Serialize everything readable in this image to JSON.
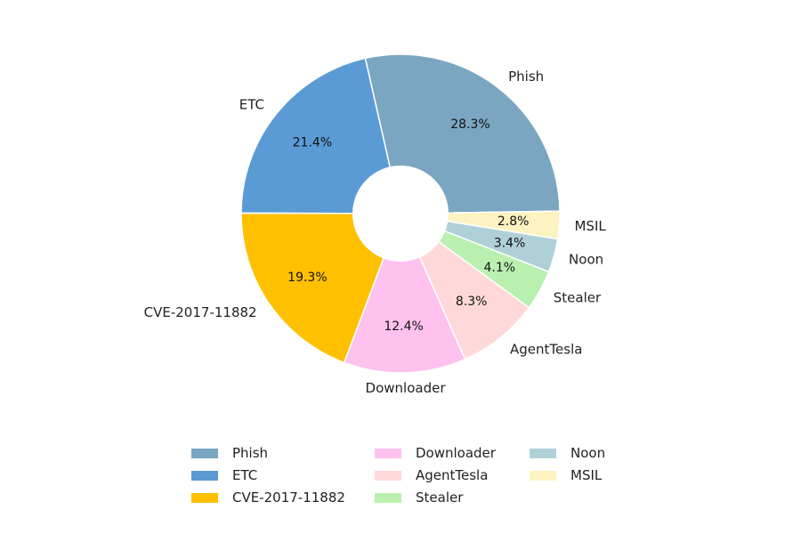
{
  "chart_data": {
    "type": "pie",
    "donut": true,
    "title": "",
    "legend_position": "bottom",
    "slices": [
      {
        "label": "Phish",
        "value": 28.3,
        "pct_label": "28.3%",
        "color": "#7aa6c2"
      },
      {
        "label": "ETC",
        "value": 21.4,
        "pct_label": "21.4%",
        "color": "#5b9bd5"
      },
      {
        "label": "CVE-2017-11882",
        "value": 19.3,
        "pct_label": "19.3%",
        "color": "#ffc000"
      },
      {
        "label": "Downloader",
        "value": 12.4,
        "pct_label": "12.4%",
        "color": "#ffc2ee"
      },
      {
        "label": "AgentTesla",
        "value": 8.3,
        "pct_label": "8.3%",
        "color": "#ffd9d9"
      },
      {
        "label": "Stealer",
        "value": 4.1,
        "pct_label": "4.1%",
        "color": "#b9f0b0"
      },
      {
        "label": "Noon",
        "value": 3.4,
        "pct_label": "3.4%",
        "color": "#b0d0d8"
      },
      {
        "label": "MSIL",
        "value": 2.8,
        "pct_label": "2.8%",
        "color": "#fcf3c0"
      }
    ]
  }
}
